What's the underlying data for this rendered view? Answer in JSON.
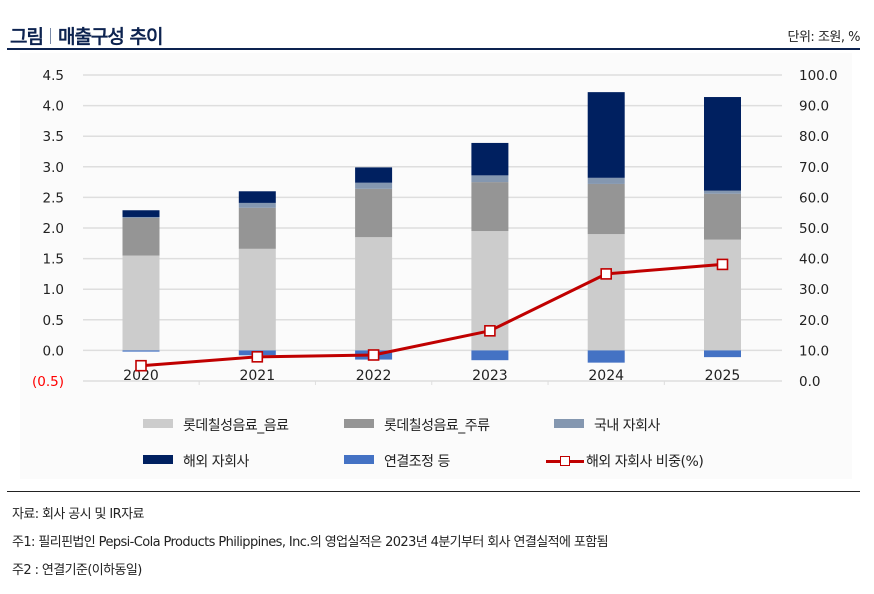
{
  "header": {
    "title_prefix": "그림",
    "title": "매출구성 추이",
    "unit": "단위: 조원, %"
  },
  "chart_data": {
    "type": "bar",
    "subtype": "stacked-bar-with-line",
    "title": "매출구성 추이",
    "unit": "조원, %",
    "categories": [
      "2020",
      "2021",
      "2022",
      "2023",
      "2024",
      "2025"
    ],
    "series": [
      {
        "name": "롯데칠성음료_음료",
        "axis": "left",
        "color": "#cccccc",
        "values": [
          1.55,
          1.66,
          1.85,
          1.95,
          1.9,
          1.81
        ]
      },
      {
        "name": "롯데칠성음료_주류",
        "axis": "left",
        "color": "#959595",
        "values": [
          0.62,
          0.67,
          0.79,
          0.8,
          0.82,
          0.75
        ]
      },
      {
        "name": "국내 자회사",
        "axis": "left",
        "color": "#8497b0",
        "values": [
          0.01,
          0.08,
          0.1,
          0.11,
          0.1,
          0.05
        ]
      },
      {
        "name": "해외 자회사",
        "axis": "left",
        "color": "#002060",
        "values": [
          0.11,
          0.19,
          0.25,
          0.53,
          1.4,
          1.53
        ]
      },
      {
        "name": "연결조정 등",
        "axis": "left",
        "color": "#4472c4",
        "values": [
          -0.02,
          -0.08,
          -0.15,
          -0.16,
          -0.2,
          -0.11
        ]
      },
      {
        "name": "해외 자회사 비중(%)",
        "axis": "right",
        "type": "line",
        "color": "#c00000",
        "values": [
          5.0,
          7.9,
          8.5,
          16.4,
          35.0,
          38.1
        ]
      }
    ],
    "y_left": {
      "ylim": [
        -0.5,
        4.5
      ],
      "ticks": [
        4.5,
        4.0,
        3.5,
        3.0,
        2.5,
        2.0,
        1.5,
        1.0,
        0.5,
        0.0,
        -0.5
      ],
      "tick_labels": [
        "4.5",
        "4.0",
        "3.5",
        "3.0",
        "2.5",
        "2.0",
        "1.5",
        "1.0",
        "0.5",
        "0.0",
        "(0.5)"
      ],
      "negative_label_color": "#ff0000"
    },
    "y_right": {
      "ylim": [
        0,
        100
      ],
      "ticks": [
        100,
        90,
        80,
        70,
        60,
        50,
        40,
        30,
        20,
        10,
        0
      ],
      "tick_labels": [
        "100.0",
        "90.0",
        "80.0",
        "70.0",
        "60.0",
        "50.0",
        "40.0",
        "30.0",
        "20.0",
        "10.0",
        "0.0"
      ]
    },
    "xlabel": "",
    "ylabel": "",
    "grid": true,
    "legend": "bottom"
  },
  "legend": {
    "items": [
      {
        "label": "롯데칠성음료_음료",
        "color": "#cccccc"
      },
      {
        "label": "롯데칠성음료_주류",
        "color": "#959595"
      },
      {
        "label": "국내 자회사",
        "color": "#8497b0"
      },
      {
        "label": "해외 자회사",
        "color": "#002060"
      },
      {
        "label": "연결조정 등",
        "color": "#4472c4"
      },
      {
        "label": "해외 자회사 비중(%)",
        "color": "#c00000"
      }
    ]
  },
  "notes": {
    "source": "자료: 회사 공시 및 IR자료",
    "note1": "주1: 필리핀법인 Pepsi-Cola Products Philippines, Inc.의 영업실적은 2023년 4분기부터 회사 연결실적에 포함됨",
    "note2": "주2 : 연결기준(이하동일)"
  }
}
